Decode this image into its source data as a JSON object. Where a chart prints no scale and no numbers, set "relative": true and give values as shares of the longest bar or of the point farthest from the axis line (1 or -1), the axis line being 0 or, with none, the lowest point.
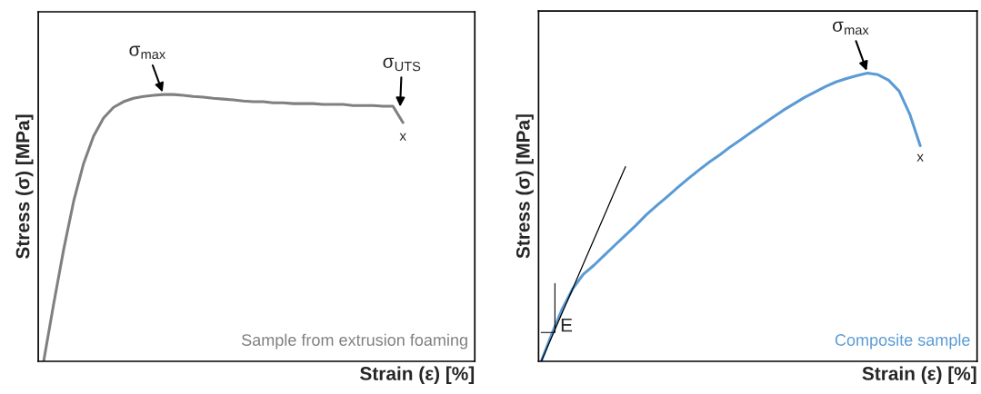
{
  "chart_data": [
    {
      "type": "line",
      "relative": true,
      "ylabel": "Stress (σ) [MPa]",
      "xlabel": "Strain (ε) [%]",
      "marker": "none",
      "line_style": "solid",
      "categories": [
        null,
        null,
        null,
        null,
        null,
        null,
        null,
        null,
        null,
        null,
        null,
        null,
        null,
        null,
        null,
        null,
        null,
        null,
        null,
        null,
        null,
        null,
        null,
        null,
        null,
        null,
        null,
        null,
        null,
        null,
        null,
        null,
        null,
        null,
        null,
        null,
        null
      ],
      "series": [
        {
          "color": "#808080",
          "values": [
            0,
            0.214,
            0.418,
            0.599,
            0.741,
            0.844,
            0.912,
            0.952,
            0.973,
            0.986,
            0.993,
            0.997,
            1.0,
            1.0,
            0.997,
            0.993,
            0.99,
            0.986,
            0.983,
            0.98,
            0.976,
            0.973,
            0.973,
            0.969,
            0.969,
            0.966,
            0.966,
            0.966,
            0.963,
            0.963,
            0.963,
            0.959,
            0.959,
            0.959,
            0.956,
            0.956,
            0.895
          ]
        }
      ],
      "annotations": [
        "σ$_{max}$",
        "σ$_{UTS}$",
        "x",
        "Sample from extrusion foaming"
      ]
    },
    {
      "type": "line",
      "relative": true,
      "ylabel": "Stress (σ) [MPa]",
      "xlabel": "Strain (ε) [%]",
      "marker": "none",
      "line_style": "solid",
      "categories": [
        null,
        null,
        null,
        null,
        null,
        null,
        null,
        null,
        null,
        null,
        null,
        null,
        null,
        null,
        null,
        null,
        null,
        null,
        null,
        null,
        null,
        null,
        null,
        null,
        null,
        null,
        null,
        null,
        null,
        null,
        null,
        null,
        null,
        null,
        null,
        null,
        null
      ],
      "series": [
        {
          "color": "#5b9bd5",
          "values": [
            0,
            0.094,
            0.182,
            0.252,
            0.302,
            0.333,
            0.368,
            0.403,
            0.437,
            0.472,
            0.509,
            0.541,
            0.572,
            0.604,
            0.635,
            0.664,
            0.692,
            0.717,
            0.745,
            0.77,
            0.796,
            0.821,
            0.846,
            0.871,
            0.893,
            0.915,
            0.934,
            0.953,
            0.969,
            0.981,
            0.991,
            1.0,
            0.994,
            0.975,
            0.937,
            0.858,
            0.748
          ]
        },
        {
          "type": "line",
          "color": "#000000",
          "values": [
            0,
            0.084,
            0.169,
            0.253,
            0.338,
            0.422,
            0.506,
            0.591,
            0.675,
            null,
            null,
            null,
            null,
            null,
            null,
            null,
            null,
            null,
            null,
            null,
            null,
            null,
            null,
            null,
            null,
            null,
            null,
            null,
            null,
            null,
            null,
            null,
            null,
            null,
            null,
            null,
            null
          ]
        }
      ],
      "annotations": [
        "σ$_{max}$",
        "x",
        "E",
        "Composite sample"
      ]
    }
  ]
}
